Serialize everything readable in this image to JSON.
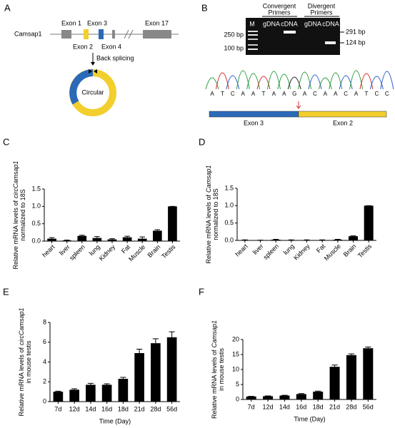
{
  "panel_a": {
    "letter": "A",
    "gene": "Camsap1",
    "exons": {
      "e1": "Exon 1",
      "e3": "Exon 3",
      "e2": "Exon 2",
      "e4": "Exon 4",
      "e17": "Exon 17"
    },
    "arrow_label": "Back splicing",
    "circle_label": "Circular"
  },
  "panel_b": {
    "letter": "B",
    "marker": "M",
    "convergent": [
      "Convergent",
      "Primers"
    ],
    "divergent": [
      "Divergent",
      "Primers"
    ],
    "lanes": [
      "gDNA",
      "cDNA",
      "gDNA",
      "cDNA"
    ],
    "ladder": [
      "250 bp",
      "100 bp"
    ],
    "products": [
      "291 bp",
      "124 bp"
    ],
    "sequence": [
      "A",
      "T",
      "C",
      "A",
      "A",
      "T",
      "A",
      "A",
      "G",
      "A",
      "C",
      "A",
      "A",
      "C",
      "A",
      "T",
      "C",
      "C"
    ],
    "exon_left": "Exon 3",
    "exon_right": "Exon 2"
  },
  "chart_data": [
    {
      "type": "bar",
      "letter": "C",
      "ylabel": {
        "text": "Relative mRNA levels of",
        "gene": "circCamsap1",
        "line2": "normalized to 18S"
      },
      "categories": [
        "heart",
        "liver",
        "spleen",
        "lung",
        "Kidney",
        "Fat",
        "Muscle",
        "Brain",
        "Testis"
      ],
      "values": [
        0.07,
        0.02,
        0.15,
        0.09,
        0.05,
        0.11,
        0.07,
        0.3,
        1.0
      ],
      "errors": [
        0.03,
        0.01,
        0.02,
        0.04,
        0.02,
        0.03,
        0.05,
        0.03,
        0
      ],
      "color": "#000000",
      "ylim": [
        0,
        1.5
      ],
      "yticks": [
        {
          "value": 0,
          "label": "0.0"
        },
        0.5,
        {
          "value": 1,
          "label": "1.0"
        },
        1.5
      ]
    },
    {
      "type": "bar",
      "letter": "D",
      "ylabel": {
        "text": "Relative mRNA levels of",
        "gene": "Camsap1",
        "line2": "normalized to 18S"
      },
      "categories": [
        "heart",
        "liver",
        "spleen",
        "lung",
        "Kidney",
        "Fat",
        "Muscle",
        "Brain",
        "Testis"
      ],
      "values": [
        0.01,
        0.005,
        0.02,
        0.01,
        0.01,
        0.01,
        0.02,
        0.12,
        1.0
      ],
      "errors": [
        0.005,
        0.003,
        0.01,
        0.005,
        0.005,
        0.005,
        0.01,
        0.01,
        0
      ],
      "color": "#000000",
      "ylim": [
        0,
        1.5
      ],
      "yticks": [
        {
          "value": 0,
          "label": "0.0"
        },
        0.5,
        {
          "value": 1,
          "label": "1.0"
        },
        1.5
      ]
    },
    {
      "type": "bar",
      "letter": "E",
      "ylabel": {
        "text": "Relative mRNA levels of",
        "gene": "circCamsap1",
        "line2": "in mouse testis"
      },
      "xlabel": "Time (Day)",
      "categories": [
        "7d",
        "12d",
        "14d",
        "16d",
        "18d",
        "21d",
        "28d",
        "56d"
      ],
      "values": [
        1.0,
        1.2,
        1.7,
        1.7,
        2.3,
        4.9,
        5.9,
        6.5
      ],
      "errors": [
        0.05,
        0.1,
        0.15,
        0.1,
        0.15,
        0.4,
        0.45,
        0.55
      ],
      "color": "#000000",
      "ylim": [
        0,
        8
      ],
      "yticks": [
        0,
        2,
        4,
        6,
        8
      ]
    },
    {
      "type": "bar",
      "letter": "F",
      "ylabel": {
        "text": "Relative mRNA levels of",
        "gene": "Camsap1",
        "line2": "in mouse testis"
      },
      "xlabel": "Time (Day)",
      "categories": [
        "7d",
        "12d",
        "14d",
        "16d",
        "18d",
        "21d",
        "28d",
        "56d"
      ],
      "values": [
        1.0,
        1.1,
        1.3,
        1.8,
        2.6,
        10.9,
        14.8,
        17.1
      ],
      "errors": [
        0.05,
        0.1,
        0.1,
        0.15,
        0.2,
        0.6,
        0.4,
        0.4
      ],
      "color": "#000000",
      "ylim": [
        0,
        20
      ],
      "yticks": [
        0,
        5,
        10,
        15,
        20
      ]
    }
  ]
}
